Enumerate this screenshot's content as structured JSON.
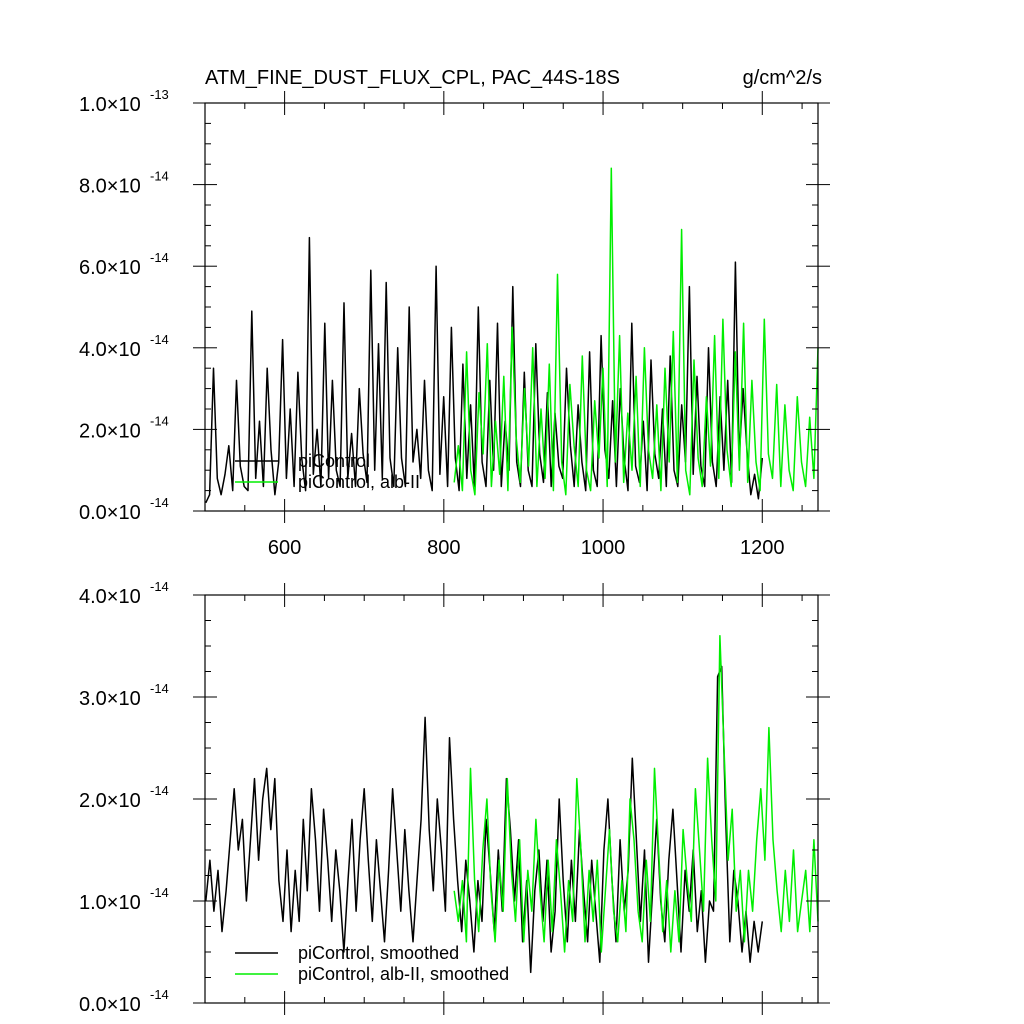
{
  "chart_data": [
    {
      "type": "line",
      "title": "ATM_FINE_DUST_FLUX_CPL, PAC_44S-18S",
      "units": "g/cm^2/s",
      "xlim": [
        500,
        1270
      ],
      "ylim": [
        0,
        1e-13
      ],
      "x_ticks": [
        600,
        800,
        1000,
        1200
      ],
      "x_tick_labels": [
        "600",
        "800",
        "1000",
        "1200"
      ],
      "y_ticks": [
        0,
        2e-14,
        4e-14,
        6e-14,
        8e-14,
        1e-13
      ],
      "y_tick_labels": [
        {
          "mant": "0.0",
          "exp": "-14"
        },
        {
          "mant": "2.0",
          "exp": "-14"
        },
        {
          "mant": "4.0",
          "exp": "-14"
        },
        {
          "mant": "6.0",
          "exp": "-14"
        },
        {
          "mant": "8.0",
          "exp": "-14"
        },
        {
          "mant": "1.0",
          "exp": "-13"
        }
      ],
      "legend_position": "bottom-left",
      "series": [
        {
          "name": "piControl",
          "color": "#000000",
          "x_range": [
            501,
            1200
          ],
          "y": [
            2e-15,
            4e-15,
            3.5e-14,
            8e-15,
            4e-15,
            9e-15,
            1.6e-14,
            5e-15,
            3.2e-14,
            1.1e-14,
            6e-15,
            5e-15,
            4.9e-14,
            8e-15,
            2.2e-14,
            6e-15,
            3.5e-14,
            1.5e-14,
            4e-15,
            1.2e-14,
            4.2e-14,
            8e-15,
            2.5e-14,
            6e-15,
            3.4e-14,
            1.3e-14,
            5e-15,
            6.7e-14,
            9e-15,
            2e-14,
            6e-15,
            4.6e-14,
            8e-15,
            3.2e-14,
            1e-14,
            6e-15,
            5.1e-14,
            8e-15,
            1.9e-14,
            6e-15,
            3e-14,
            1.4e-14,
            7e-15,
            5.9e-14,
            1e-14,
            4.1e-14,
            8e-15,
            5.6e-14,
            1.3e-14,
            6e-15,
            4e-14,
            1.3e-14,
            6e-15,
            5e-14,
            1.2e-14,
            2e-14,
            8e-15,
            3.2e-14,
            1e-14,
            5e-15,
            6e-14,
            9e-15,
            2.8e-14,
            6e-15,
            4.5e-14,
            1.3e-14,
            5e-15,
            3.6e-14,
            8e-15,
            2.6e-14,
            6e-15,
            5e-14,
            1.2e-14,
            6e-15,
            3.2e-14,
            1e-14,
            4.6e-14,
            6e-15,
            2.2e-14,
            1e-14,
            5.5e-14,
            1.2e-14,
            6e-15,
            3.4e-14,
            1e-14,
            6e-15,
            4.1e-14,
            1.4e-14,
            7e-15,
            2.9e-14,
            6e-15,
            2.4e-14,
            1.1e-14,
            8e-15,
            3.5e-14,
            1.6e-14,
            6e-15,
            2.6e-14,
            1.2e-14,
            5e-15,
            3.9e-14,
            1e-14,
            6e-15,
            4.3e-14,
            1.5e-14,
            8e-15,
            2.7e-14,
            6e-15,
            3e-14,
            1.3e-14,
            5e-15,
            4.6e-14,
            1.1e-14,
            7e-15,
            2.2e-14,
            5e-15,
            3.7e-14,
            1.4e-14,
            8e-15,
            2.5e-14,
            6e-15,
            3.8e-14,
            1e-14,
            6e-15,
            2.6e-14,
            1.2e-14,
            5.5e-14,
            9e-15,
            3.3e-14,
            1.1e-14,
            6e-15,
            4e-14,
            1.2e-14,
            6e-15,
            2.8e-14,
            1e-14,
            3.2e-14,
            7e-15,
            6.1e-14,
            1.3e-14,
            3e-14,
            1.5e-14,
            4e-15,
            9e-15,
            3e-15,
            1.3e-14
          ]
        },
        {
          "name": "piControl, alb-II",
          "color": "#00ee00",
          "x_range": [
            813,
            1270
          ],
          "y": [
            7e-15,
            1.6e-14,
            5e-15,
            3.9e-14,
            1e-14,
            4e-15,
            2.9e-14,
            1.4e-14,
            4.1e-14,
            6e-15,
            2.2e-14,
            9e-15,
            3.3e-14,
            5e-15,
            4.5e-14,
            1.8e-14,
            7e-15,
            3e-14,
            1.1e-14,
            4e-14,
            6e-15,
            2.5e-14,
            8e-15,
            3.6e-14,
            5e-15,
            5.8e-14,
            1.2e-14,
            4e-15,
            3.1e-14,
            1.6e-14,
            6e-15,
            3.8e-14,
            1e-14,
            5e-15,
            2.7e-14,
            1.3e-14,
            3.5e-14,
            6e-15,
            8.4e-14,
            1.2e-14,
            4.3e-14,
            7e-15,
            2.4e-14,
            1e-14,
            3.3e-14,
            6e-15,
            4e-14,
            1.5e-14,
            8e-15,
            2.6e-14,
            5e-15,
            3.5e-14,
            1.2e-14,
            4.4e-14,
            7e-15,
            6.9e-14,
            1e-14,
            4e-15,
            3.7e-14,
            1.3e-14,
            6e-15,
            2.8e-14,
            1.1e-14,
            4.3e-14,
            8e-15,
            4.7e-14,
            1.5e-14,
            6e-15,
            3.9e-14,
            1e-14,
            4.6e-14,
            7e-15,
            3.2e-14,
            1.2e-14,
            5e-15,
            4.7e-14,
            1.4e-14,
            8e-15,
            3.1e-14,
            6e-15,
            2.6e-14,
            1e-14,
            5e-15,
            2.8e-14,
            1.2e-14,
            6e-15,
            2.3e-14,
            8e-15,
            4e-14
          ]
        }
      ]
    },
    {
      "type": "line",
      "xlim": [
        500,
        1270
      ],
      "ylim": [
        0,
        4e-14
      ],
      "x_ticks": [
        600,
        800,
        1000,
        1200
      ],
      "y_ticks": [
        0,
        1e-14,
        2e-14,
        3e-14,
        4e-14
      ],
      "y_tick_labels": [
        {
          "mant": "0.0",
          "exp": "-14"
        },
        {
          "mant": "1.0",
          "exp": "-14"
        },
        {
          "mant": "2.0",
          "exp": "-14"
        },
        {
          "mant": "3.0",
          "exp": "-14"
        },
        {
          "mant": "4.0",
          "exp": "-14"
        }
      ],
      "legend_position": "bottom-left",
      "series": [
        {
          "name": "piControl, smoothed",
          "color": "#000000",
          "x_range": [
            501,
            1200
          ],
          "y": [
            1e-14,
            1.4e-14,
            9e-15,
            1.3e-14,
            7e-15,
            1.1e-14,
            1.6e-14,
            2.1e-14,
            1.5e-14,
            1.8e-14,
            1e-14,
            1.6e-14,
            2.2e-14,
            1.4e-14,
            2e-14,
            2.3e-14,
            1.7e-14,
            2.2e-14,
            1.2e-14,
            8e-15,
            1.5e-14,
            7e-15,
            1.3e-14,
            8e-15,
            1.8e-14,
            1.1e-14,
            2.1e-14,
            1.6e-14,
            9e-15,
            1.9e-14,
            1.4e-14,
            8e-15,
            1.5e-14,
            1.1e-14,
            5e-15,
            1.2e-14,
            1.8e-14,
            9e-15,
            1.6e-14,
            2.1e-14,
            1.4e-14,
            8e-15,
            1.6e-14,
            1.1e-14,
            6e-15,
            1.3e-14,
            2.1e-14,
            1.5e-14,
            9e-15,
            1.7e-14,
            1.1e-14,
            6e-15,
            1.2e-14,
            1.8e-14,
            2.8e-14,
            1.7e-14,
            1.1e-14,
            2e-14,
            1.5e-14,
            9e-15,
            2.6e-14,
            1.8e-14,
            1.2e-14,
            7e-15,
            1.4e-14,
            1e-14,
            5e-15,
            1.2e-14,
            8e-15,
            1.8e-14,
            1.3e-14,
            7e-15,
            1.5e-14,
            9e-15,
            2.2e-14,
            1.7e-14,
            1e-14,
            1.6e-14,
            6e-15,
            1.2e-14,
            3e-15,
            1.1e-14,
            1.5e-14,
            8e-15,
            1.4e-14,
            5e-15,
            9e-15,
            2e-14,
            1.2e-14,
            6e-15,
            1.4e-14,
            8e-15,
            1.7e-14,
            1.1e-14,
            6e-15,
            1.4e-14,
            9e-15,
            4e-15,
            1.5e-14,
            2e-14,
            1.2e-14,
            6e-15,
            1.6e-14,
            9e-15,
            1.3e-14,
            2.4e-14,
            1.6e-14,
            8e-15,
            1.5e-14,
            4e-15,
            1.1e-14,
            1.8e-14,
            1e-14,
            6e-15,
            1.4e-14,
            1.9e-14,
            1.2e-14,
            5e-15,
            1.3e-14,
            9e-15,
            1.5e-14,
            7e-15,
            1.1e-14,
            4e-15,
            1e-14,
            9e-15,
            3.2e-14,
            3.3e-14,
            1.8e-14,
            6e-15,
            1.3e-14,
            1e-14,
            5e-15,
            9e-15,
            4e-15,
            8e-15,
            5e-15,
            8e-15
          ]
        },
        {
          "name": "piControl, alb-II, smoothed",
          "color": "#00ee00",
          "x_range": [
            813,
            1270
          ],
          "y": [
            1.1e-14,
            8e-15,
            1.2e-14,
            6e-15,
            2.3e-14,
            1.2e-14,
            7e-15,
            1.5e-14,
            2e-14,
            1.1e-14,
            6e-15,
            1.4e-14,
            9e-15,
            2.2e-14,
            1.3e-14,
            8e-15,
            1.6e-14,
            6e-15,
            1.3e-14,
            9e-15,
            1.8e-14,
            1.1e-14,
            6e-15,
            1.4e-14,
            7e-15,
            1.6e-14,
            1.1e-14,
            5e-15,
            1.2e-14,
            8e-15,
            2.2e-14,
            1.5e-14,
            6e-15,
            1.3e-14,
            8e-15,
            1.4e-14,
            5e-15,
            1.1e-14,
            1.7e-14,
            9e-15,
            6e-15,
            1.2e-14,
            7e-15,
            2e-14,
            1.6e-14,
            9e-15,
            6e-15,
            1.4e-14,
            8e-15,
            2.3e-14,
            1.5e-14,
            7e-15,
            1.2e-14,
            5e-15,
            1.1e-14,
            6e-15,
            1.7e-14,
            1.2e-14,
            8e-15,
            2.1e-14,
            1.5e-14,
            9e-15,
            2.4e-14,
            1.6e-14,
            1e-14,
            3.6e-14,
            2.5e-14,
            1.4e-14,
            1.9e-14,
            9e-15,
            1.3e-14,
            6e-15,
            1.3e-14,
            9e-15,
            1.6e-14,
            2.1e-14,
            1.4e-14,
            2.7e-14,
            1.6e-14,
            1.1e-14,
            7e-15,
            1.3e-14,
            8e-15,
            1.5e-14,
            7e-15,
            1e-14,
            1.3e-14,
            7e-15,
            1.6e-14,
            8e-15
          ]
        }
      ]
    }
  ]
}
